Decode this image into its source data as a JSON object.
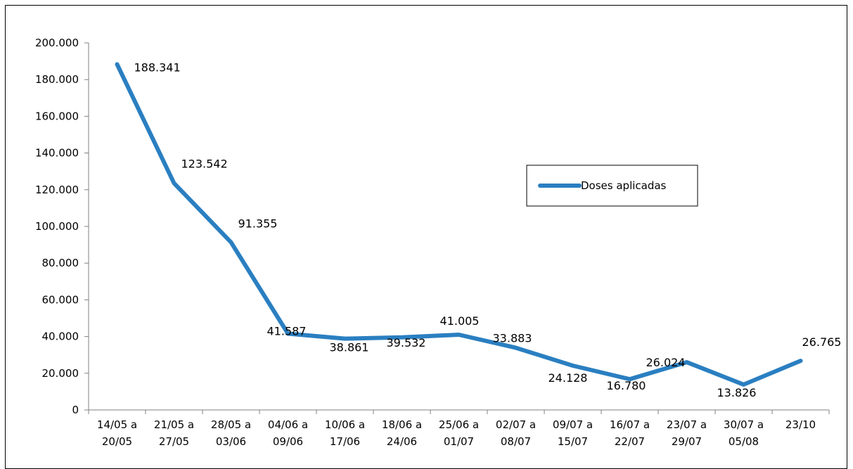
{
  "chart_data": {
    "type": "line",
    "categories": [
      [
        "14/05 a",
        "20/05"
      ],
      [
        "21/05 a",
        "27/05"
      ],
      [
        "28/05 a",
        "03/06"
      ],
      [
        "04/06 a",
        "09/06"
      ],
      [
        "10/06 a",
        "17/06"
      ],
      [
        "18/06 a",
        "24/06"
      ],
      [
        "25/06 a",
        "01/07"
      ],
      [
        "02/07 a",
        "08/07"
      ],
      [
        "09/07 a",
        "15/07"
      ],
      [
        "16/07 a",
        "22/07"
      ],
      [
        "23/07 a",
        "29/07"
      ],
      [
        "30/07 a",
        "05/08"
      ],
      [
        "23/10"
      ]
    ],
    "series": [
      {
        "name": "Doses aplicadas",
        "color": "#2a7fc1",
        "values": [
          188341,
          123542,
          91355,
          41587,
          38861,
          39532,
          41005,
          33883,
          24128,
          16780,
          26024,
          13826,
          26765
        ],
        "labels": [
          "188.341",
          "123.542",
          "91.355",
          "41.587",
          "38.861",
          "39.532",
          "41.005",
          "33.883",
          "24.128",
          "16.780",
          "26.024",
          "13.826",
          "26.765"
        ]
      }
    ],
    "ylim": [
      0,
      200000
    ],
    "yticks": [
      "0",
      "20.000",
      "40.000",
      "60.000",
      "80.000",
      "100.000",
      "120.000",
      "140.000",
      "160.000",
      "180.000",
      "200.000"
    ],
    "grid": false,
    "legend": "right"
  }
}
